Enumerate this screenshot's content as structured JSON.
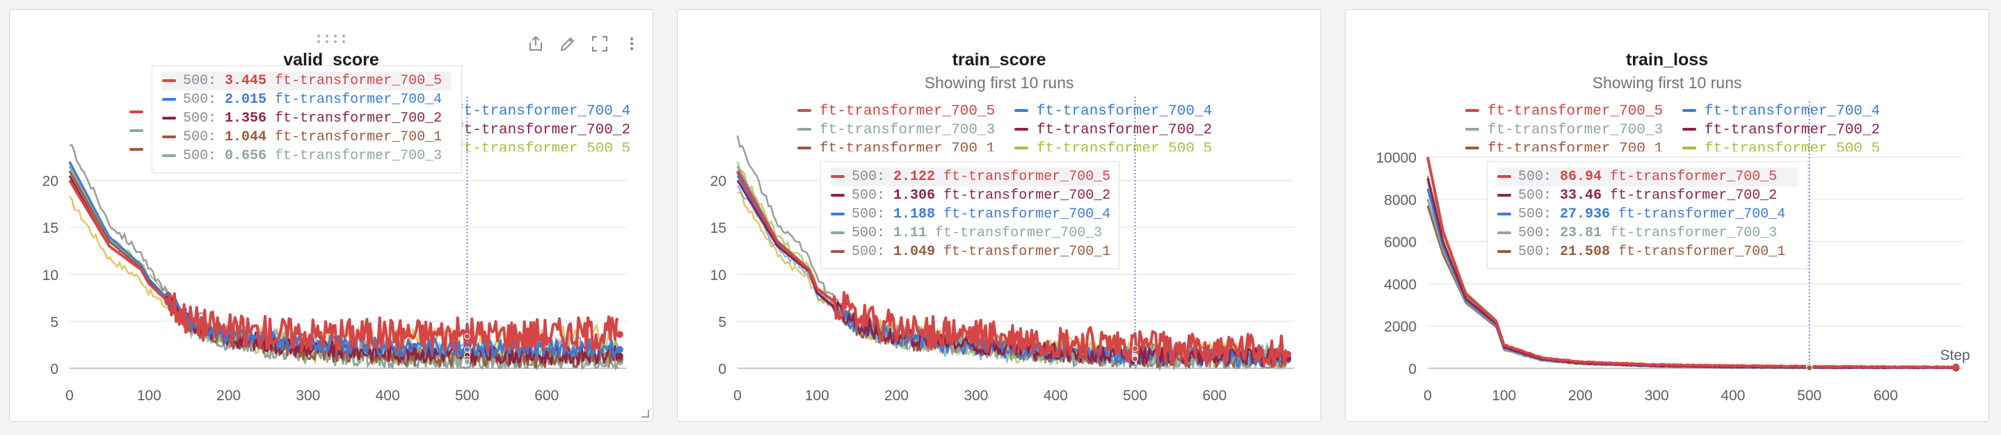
{
  "colors": {
    "ft-transformer_700_5": "#d64545",
    "ft-transformer_700_4": "#3b7bd8",
    "ft-transformer_700_3": "#8fa79b",
    "ft-transformer_700_2": "#8e2147",
    "ft-transformer_700_1": "#9b5a3c",
    "ft-transformer_500_5": "#a4bf3e",
    "ft-transformer_other_a": "#e0b22e",
    "ft-transformer_other_b": "#5fa6d6",
    "ft-transformer_other_c": "#7a7a7a",
    "grid": "#e9eaec",
    "axis": "#c7c9cd",
    "tick_text": "#5b5e63",
    "cursor": "#3b6fc4"
  },
  "panels": [
    {
      "title": "valid_score",
      "subtitle": "",
      "toolbar_icons": [
        "share-icon",
        "edit-icon",
        "fullscreen-icon",
        "more-icon"
      ],
      "legend": [
        {
          "label": "ft-transformer_700_4",
          "color_key": "ft-transformer_700_4"
        },
        {
          "label": "ft-transformer_700_2",
          "color_key": "ft-transformer_700_2"
        },
        {
          "label": "ft-transformer_500_5",
          "color_key": "ft-transformer_500_5"
        }
      ],
      "tooltip": [
        {
          "step": "500:",
          "value": "3.445",
          "run": "ft-transformer_700_5",
          "color_key": "ft-transformer_700_5",
          "highlight": true
        },
        {
          "step": "500:",
          "value": "2.015",
          "run": "ft-transformer_700_4",
          "color_key": "ft-transformer_700_4",
          "highlight": false
        },
        {
          "step": "500:",
          "value": "1.356",
          "run": "ft-transformer_700_2",
          "color_key": "ft-transformer_700_2",
          "highlight": false
        },
        {
          "step": "500:",
          "value": "1.044",
          "run": "ft-transformer_700_1",
          "color_key": "ft-transformer_700_1",
          "highlight": false
        },
        {
          "step": "500:",
          "value": "0.656",
          "run": "ft-transformer_700_3",
          "color_key": "ft-transformer_700_3",
          "highlight": false
        }
      ],
      "x_axis_label": "",
      "chart_data": {
        "type": "line",
        "x_ticks": [
          "0",
          "100",
          "200",
          "300",
          "400",
          "500",
          "600"
        ],
        "y_ticks": [
          "0",
          "5",
          "10",
          "15",
          "20"
        ],
        "xlim": [
          0,
          700
        ],
        "ylim": [
          0,
          23
        ],
        "cursor_x": 500,
        "series": [
          {
            "name": "ft-transformer_700_5",
            "x": [
              0,
              50,
              90,
              100,
              150,
              200,
              300,
              400,
              500,
              600,
              690
            ],
            "y": [
              20,
              13,
              10.5,
              9,
              5,
              3.8,
              3.5,
              3.5,
              3.4,
              3.5,
              3.6
            ]
          },
          {
            "name": "ft-transformer_700_4",
            "x": [
              0,
              50,
              90,
              100,
              150,
              200,
              300,
              400,
              500,
              600,
              690
            ],
            "y": [
              22,
              14,
              11,
              9.5,
              5,
              3.5,
              2.5,
              2.2,
              2.0,
              2.0,
              2.0
            ]
          },
          {
            "name": "ft-transformer_700_2",
            "x": [
              0,
              50,
              90,
              100,
              150,
              200,
              300,
              400,
              500,
              600,
              690
            ],
            "y": [
              20.5,
              13,
              10.5,
              9.3,
              4.8,
              3.2,
              2.0,
              1.6,
              1.4,
              1.3,
              1.3
            ]
          },
          {
            "name": "ft-transformer_700_1",
            "x": [
              0,
              50,
              90,
              100,
              150,
              200,
              300,
              400,
              500,
              600,
              690
            ],
            "y": [
              21,
              13.5,
              10.7,
              9.2,
              4.6,
              3.0,
              1.7,
              1.3,
              1.0,
              1.0,
              1.0
            ]
          },
          {
            "name": "ft-transformer_700_3",
            "x": [
              0,
              50,
              90,
              100,
              150,
              200,
              300,
              400,
              500,
              600,
              690
            ],
            "y": [
              21.5,
              13.8,
              11,
              9.4,
              4.5,
              2.7,
              1.3,
              0.9,
              0.7,
              0.7,
              0.7
            ]
          }
        ]
      }
    },
    {
      "title": "train_score",
      "subtitle": "Showing first 10 runs",
      "toolbar_icons": [],
      "legend": [
        {
          "label": "ft-transformer_700_5",
          "color_key": "ft-transformer_700_5"
        },
        {
          "label": "ft-transformer_700_4",
          "color_key": "ft-transformer_700_4"
        },
        {
          "label": "ft-transformer_700_3",
          "color_key": "ft-transformer_700_3"
        },
        {
          "label": "ft-transformer_700_2",
          "color_key": "ft-transformer_700_2"
        },
        {
          "label": "ft-transformer_700_1",
          "color_key": "ft-transformer_700_1"
        },
        {
          "label": "ft-transformer_500_5",
          "color_key": "ft-transformer_500_5"
        }
      ],
      "tooltip": [
        {
          "step": "500:",
          "value": "2.122",
          "run": "ft-transformer_700_5",
          "color_key": "ft-transformer_700_5",
          "highlight": true
        },
        {
          "step": "500:",
          "value": "1.306",
          "run": "ft-transformer_700_2",
          "color_key": "ft-transformer_700_2",
          "highlight": false
        },
        {
          "step": "500:",
          "value": "1.188",
          "run": "ft-transformer_700_4",
          "color_key": "ft-transformer_700_4",
          "highlight": false
        },
        {
          "step": "500:",
          "value": "1.11",
          "run": "ft-transformer_700_3",
          "color_key": "ft-transformer_700_3",
          "highlight": false
        },
        {
          "step": "500:",
          "value": "1.049",
          "run": "ft-transformer_700_1",
          "color_key": "ft-transformer_700_1",
          "highlight": false
        }
      ],
      "x_axis_label": "",
      "chart_data": {
        "type": "line",
        "x_ticks": [
          "0",
          "100",
          "200",
          "300",
          "400",
          "500",
          "600"
        ],
        "y_ticks": [
          "0",
          "5",
          "10",
          "15",
          "20"
        ],
        "xlim": [
          0,
          700
        ],
        "ylim": [
          0,
          23
        ],
        "cursor_x": 500,
        "series": [
          {
            "name": "ft-transformer_700_5",
            "x": [
              0,
              50,
              90,
              100,
              150,
              200,
              300,
              400,
              500,
              600,
              690
            ],
            "y": [
              21,
              13.5,
              10.5,
              8.5,
              5.2,
              4.0,
              3.2,
              2.6,
              2.1,
              1.8,
              1.5
            ]
          },
          {
            "name": "ft-transformer_700_2",
            "x": [
              0,
              50,
              90,
              100,
              150,
              200,
              300,
              400,
              500,
              600,
              690
            ],
            "y": [
              20,
              13,
              10.3,
              8.0,
              4.6,
              3.3,
              2.3,
              1.7,
              1.3,
              1.2,
              1.1
            ]
          },
          {
            "name": "ft-transformer_700_4",
            "x": [
              0,
              50,
              90,
              100,
              150,
              200,
              300,
              400,
              500,
              600,
              690
            ],
            "y": [
              20.5,
              13.2,
              10.4,
              8.1,
              4.5,
              3.2,
              2.2,
              1.6,
              1.2,
              1.1,
              1.0
            ]
          },
          {
            "name": "ft-transformer_700_3",
            "x": [
              0,
              50,
              90,
              100,
              150,
              200,
              300,
              400,
              500,
              600,
              690
            ],
            "y": [
              21.5,
              13.6,
              10.6,
              8.2,
              4.4,
              3.1,
              2.1,
              1.5,
              1.1,
              1.0,
              1.0
            ]
          },
          {
            "name": "ft-transformer_700_1",
            "x": [
              0,
              50,
              90,
              100,
              150,
              200,
              300,
              400,
              500,
              600,
              690
            ],
            "y": [
              20.8,
              13.3,
              10.5,
              8.0,
              4.3,
              3.0,
              2.0,
              1.4,
              1.0,
              0.9,
              0.9
            ]
          }
        ]
      }
    },
    {
      "title": "train_loss",
      "subtitle": "Showing first 10 runs",
      "toolbar_icons": [],
      "legend": [
        {
          "label": "ft-transformer_700_5",
          "color_key": "ft-transformer_700_5"
        },
        {
          "label": "ft-transformer_700_4",
          "color_key": "ft-transformer_700_4"
        },
        {
          "label": "ft-transformer_700_3",
          "color_key": "ft-transformer_700_3"
        },
        {
          "label": "ft-transformer_700_2",
          "color_key": "ft-transformer_700_2"
        },
        {
          "label": "ft-transformer_700_1",
          "color_key": "ft-transformer_700_1"
        },
        {
          "label": "ft-transformer_500_5",
          "color_key": "ft-transformer_500_5"
        }
      ],
      "tooltip": [
        {
          "step": "500:",
          "value": "86.94",
          "run": "ft-transformer_700_5",
          "color_key": "ft-transformer_700_5",
          "highlight": true
        },
        {
          "step": "500:",
          "value": "33.46",
          "run": "ft-transformer_700_2",
          "color_key": "ft-transformer_700_2",
          "highlight": false
        },
        {
          "step": "500:",
          "value": "27.936",
          "run": "ft-transformer_700_4",
          "color_key": "ft-transformer_700_4",
          "highlight": false
        },
        {
          "step": "500:",
          "value": "23.81",
          "run": "ft-transformer_700_3",
          "color_key": "ft-transformer_700_3",
          "highlight": false
        },
        {
          "step": "500:",
          "value": "21.508",
          "run": "ft-transformer_700_1",
          "color_key": "ft-transformer_700_1",
          "highlight": false
        }
      ],
      "x_axis_label": "Step",
      "chart_data": {
        "type": "line",
        "x_ticks": [
          "0",
          "100",
          "200",
          "300",
          "400",
          "500",
          "600"
        ],
        "y_ticks": [
          "0",
          "2000",
          "4000",
          "6000",
          "8000",
          "10000"
        ],
        "xlim": [
          0,
          700
        ],
        "ylim": [
          0,
          10000
        ],
        "cursor_x": 500,
        "series": [
          {
            "name": "ft-transformer_700_5",
            "x": [
              0,
              20,
              50,
              90,
              100,
              150,
              200,
              300,
              400,
              500,
              600,
              690
            ],
            "y": [
              10000,
              6500,
              3500,
              2200,
              1100,
              500,
              300,
              170,
              120,
              87,
              70,
              60
            ]
          },
          {
            "name": "ft-transformer_700_2",
            "x": [
              0,
              20,
              50,
              90,
              100,
              150,
              200,
              300,
              400,
              500,
              600,
              690
            ],
            "y": [
              9000,
              6000,
              3300,
              2100,
              1000,
              430,
              250,
              110,
              60,
              33,
              28,
              25
            ]
          },
          {
            "name": "ft-transformer_700_4",
            "x": [
              0,
              20,
              50,
              90,
              100,
              150,
              200,
              300,
              400,
              500,
              600,
              690
            ],
            "y": [
              8500,
              5800,
              3200,
              2050,
              950,
              400,
              230,
              100,
              50,
              28,
              24,
              22
            ]
          },
          {
            "name": "ft-transformer_700_3",
            "x": [
              0,
              20,
              50,
              90,
              100,
              150,
              200,
              300,
              400,
              500,
              600,
              690
            ],
            "y": [
              8000,
              5600,
              3150,
              2000,
              900,
              380,
              220,
              95,
              45,
              24,
              21,
              20
            ]
          },
          {
            "name": "ft-transformer_700_1",
            "x": [
              0,
              20,
              50,
              90,
              100,
              150,
              200,
              300,
              400,
              500,
              600,
              690
            ],
            "y": [
              7700,
              5400,
              3100,
              1950,
              880,
              370,
              210,
              90,
              42,
              22,
              20,
              19
            ]
          }
        ]
      }
    }
  ]
}
